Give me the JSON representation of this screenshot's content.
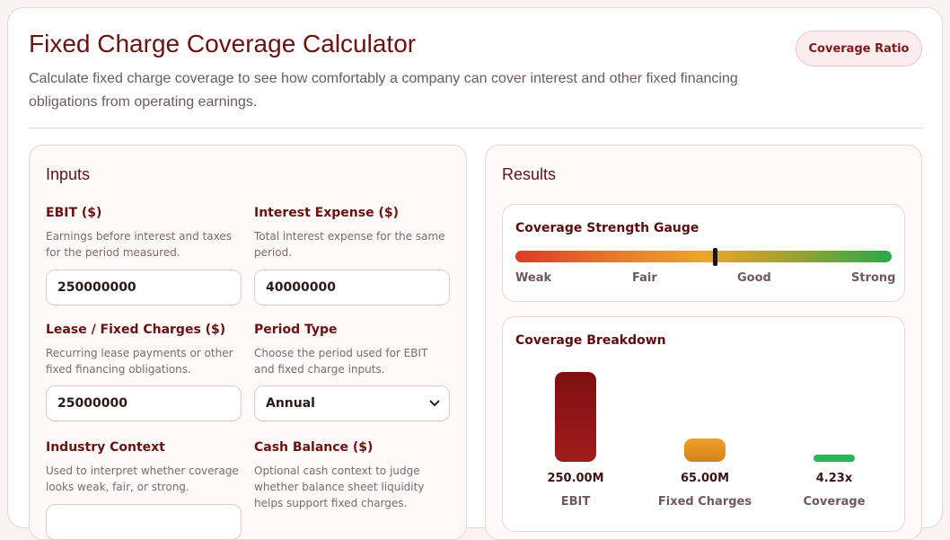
{
  "header": {
    "title": "Fixed Charge Coverage Calculator",
    "subtitle": "Calculate fixed charge coverage to see how comfortably a company can cover interest and other fixed financing obligations from operating earnings.",
    "badge": "Coverage Ratio"
  },
  "inputs": {
    "title": "Inputs",
    "fields": [
      {
        "label": "EBIT ($)",
        "help": "Earnings before interest and taxes for the period measured.",
        "value": "250000000"
      },
      {
        "label": "Interest Expense ($)",
        "help": "Total interest expense for the same period.",
        "value": "40000000"
      },
      {
        "label": "Lease / Fixed Charges ($)",
        "help": "Recurring lease payments or other fixed financing obligations.",
        "value": "25000000"
      },
      {
        "label": "Period Type",
        "help": "Choose the period used for EBIT and fixed charge inputs.",
        "value": "Annual"
      },
      {
        "label": "Industry Context",
        "help": "Used to interpret whether coverage looks weak, fair, or strong.",
        "value": ""
      },
      {
        "label": "Cash Balance ($)",
        "help": "Optional cash context to judge whether balance sheet liquidity helps support fixed charges.",
        "value": ""
      }
    ]
  },
  "results": {
    "title": "Results",
    "gauge": {
      "title": "Coverage Strength Gauge",
      "labels": [
        "Weak",
        "Fair",
        "Good",
        "Strong"
      ],
      "marker_fraction": 0.53
    },
    "breakdown": {
      "title": "Coverage Breakdown",
      "items": [
        {
          "value": "250.00M",
          "label": "EBIT",
          "color": "#8e1212"
        },
        {
          "value": "65.00M",
          "label": "Fixed Charges",
          "color": "#e0901f"
        },
        {
          "value": "4.23x",
          "label": "Coverage",
          "color": "#2bb55a"
        }
      ]
    }
  }
}
